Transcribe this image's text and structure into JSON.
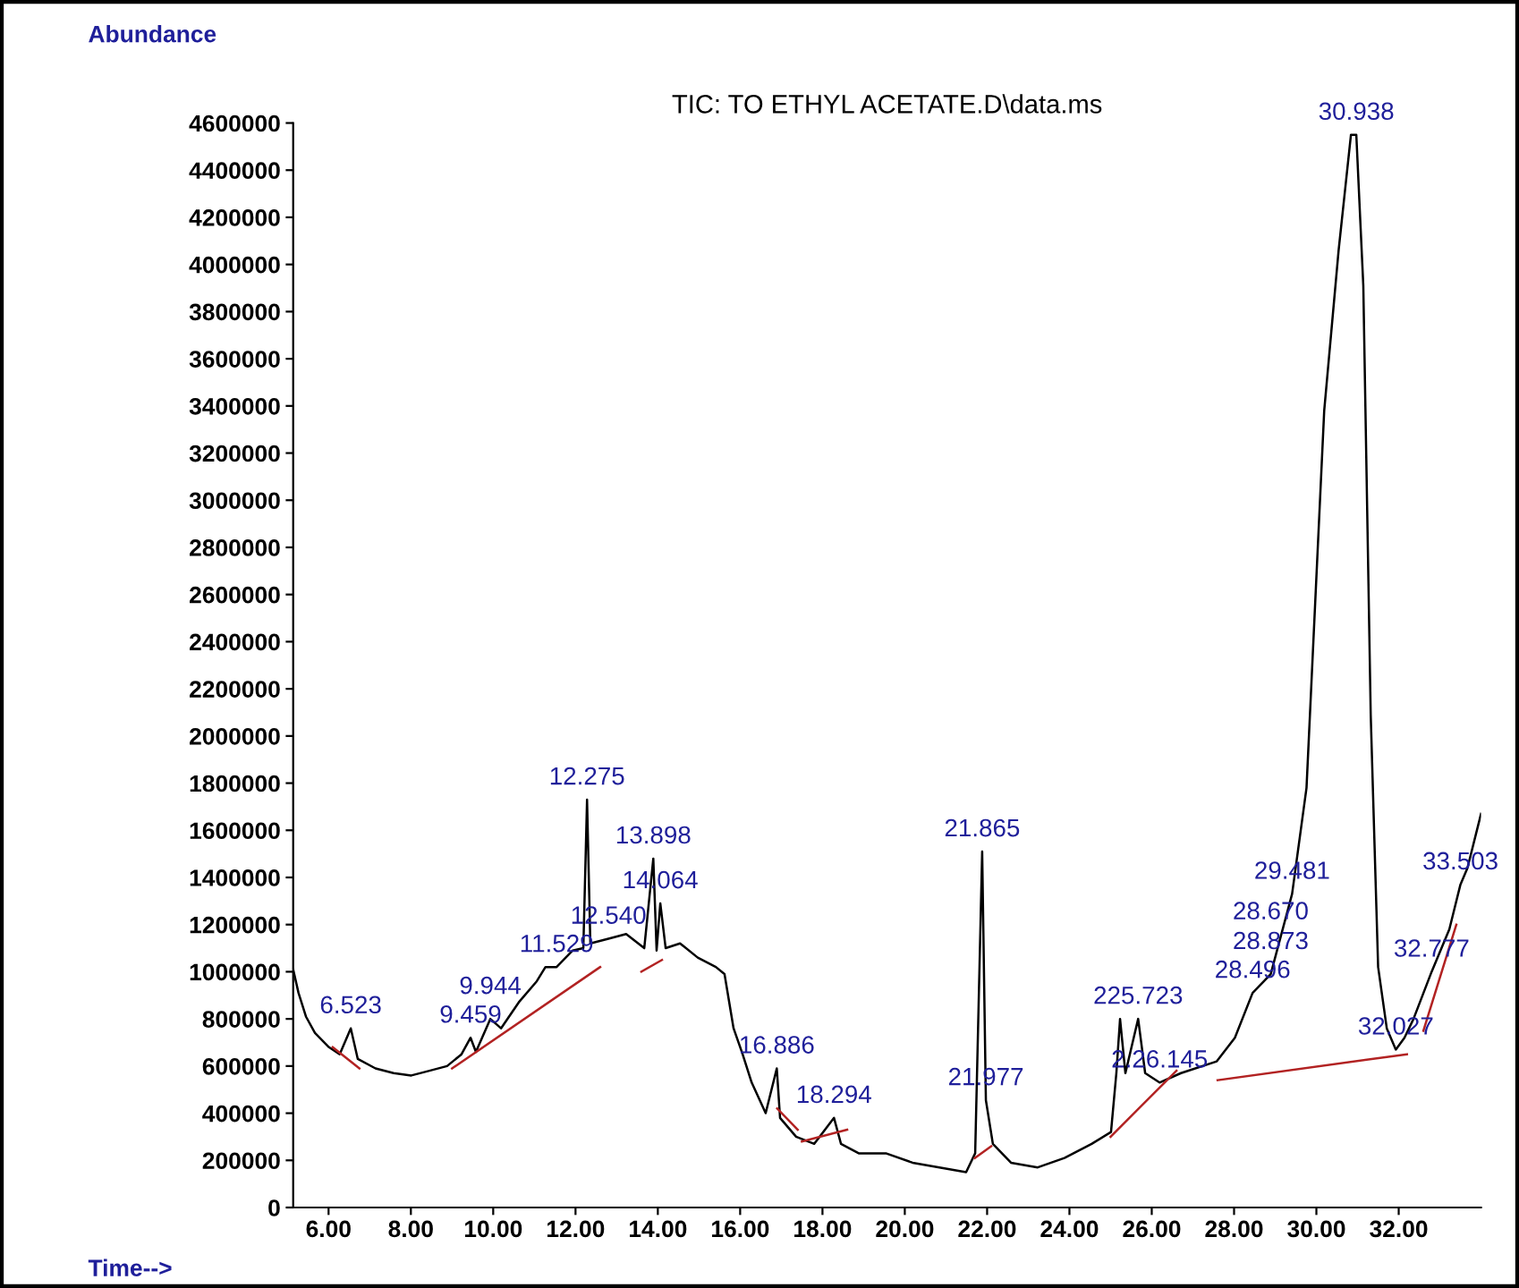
{
  "chart_data": {
    "type": "line",
    "title": "TIC: TO ETHYL ACETATE.D\\data.ms",
    "xlabel": "Time-->",
    "ylabel": "Abundance",
    "xlim": [
      5.14,
      34.0
    ],
    "ylim": [
      0,
      4600000
    ],
    "xticks": [
      {
        "value": 6,
        "label": "6.00"
      },
      {
        "value": 8,
        "label": "8.00"
      },
      {
        "value": 10,
        "label": "10.00"
      },
      {
        "value": 12,
        "label": "12.00"
      },
      {
        "value": 14,
        "label": "14.00"
      },
      {
        "value": 16,
        "label": "16.00"
      },
      {
        "value": 18,
        "label": "18.00"
      },
      {
        "value": 20,
        "label": "20.00"
      },
      {
        "value": 22,
        "label": "22.00"
      },
      {
        "value": 24,
        "label": "24.00"
      },
      {
        "value": 26,
        "label": "26.00"
      },
      {
        "value": 28,
        "label": "28.00"
      },
      {
        "value": 30,
        "label": "30.00"
      },
      {
        "value": 32,
        "label": "32.00"
      }
    ],
    "yticks": [
      0,
      200000,
      400000,
      600000,
      800000,
      1000000,
      1200000,
      1400000,
      1600000,
      1800000,
      2000000,
      2200000,
      2400000,
      2600000,
      2800000,
      3000000,
      3200000,
      3400000,
      3600000,
      3800000,
      4000000,
      4200000,
      4400000,
      4600000
    ],
    "grid": false,
    "marker": "none",
    "series": [
      {
        "color": "#000000",
        "line_style": "solid",
        "x": [
          5.14,
          5.27,
          5.45,
          5.67,
          6.01,
          6.27,
          6.54,
          6.71,
          7.14,
          7.58,
          8.01,
          8.45,
          8.88,
          9.23,
          9.45,
          9.58,
          9.93,
          10.19,
          10.62,
          11.06,
          11.27,
          11.54,
          11.93,
          12.19,
          12.28,
          12.36,
          12.8,
          13.23,
          13.67,
          13.89,
          13.97,
          14.06,
          14.19,
          14.54,
          14.97,
          15.41,
          15.62,
          15.84,
          16.06,
          16.28,
          16.62,
          16.89,
          16.97,
          17.36,
          17.8,
          18.28,
          18.45,
          18.88,
          19.54,
          20.19,
          20.84,
          21.49,
          21.71,
          21.88,
          21.97,
          22.14,
          22.58,
          23.23,
          23.88,
          24.54,
          25.01,
          25.14,
          25.23,
          25.36,
          25.67,
          25.84,
          26.19,
          26.71,
          27.58,
          28.02,
          28.45,
          28.89,
          29.41,
          29.76,
          30.19,
          30.54,
          30.84,
          30.97,
          31.14,
          31.32,
          31.5,
          31.71,
          31.93,
          32.14,
          32.36,
          32.8,
          33.23,
          33.5,
          33.67,
          34.0
        ],
        "values": [
          1010000,
          910000,
          810000,
          740000,
          680000,
          650000,
          760000,
          630000,
          590000,
          570000,
          560000,
          580000,
          600000,
          650000,
          720000,
          660000,
          800000,
          760000,
          870000,
          960000,
          1020000,
          1020000,
          1090000,
          1100000,
          1730000,
          1120000,
          1140000,
          1160000,
          1100000,
          1480000,
          1090000,
          1290000,
          1100000,
          1120000,
          1060000,
          1020000,
          990000,
          760000,
          650000,
          530000,
          400000,
          590000,
          380000,
          300000,
          270000,
          380000,
          270000,
          230000,
          230000,
          190000,
          170000,
          150000,
          230000,
          1510000,
          455000,
          270000,
          190000,
          170000,
          210000,
          270000,
          320000,
          570000,
          800000,
          570000,
          800000,
          570000,
          530000,
          570000,
          620000,
          720000,
          910000,
          990000,
          1330000,
          1780000,
          3380000,
          4060000,
          4550000,
          4550000,
          3910000,
          2090000,
          1020000,
          760000,
          670000,
          720000,
          800000,
          1000000,
          1180000,
          1370000,
          1440000,
          1670000
        ]
      },
      {
        "color": "#b22222",
        "line_style": "solid",
        "x": [
          6.1,
          6.75,
          null,
          9.0,
          12.6,
          null,
          13.6,
          14.1,
          null,
          16.9,
          17.4,
          null,
          17.5,
          18.6,
          null,
          21.7,
          22.1,
          null,
          25.0,
          26.6,
          null,
          27.6,
          32.2,
          null,
          32.6,
          33.4
        ],
        "values": [
          680000,
          590000,
          null,
          590000,
          1020000,
          null,
          1000000,
          1050000,
          null,
          420000,
          330000,
          null,
          280000,
          330000,
          null,
          210000,
          260000,
          null,
          300000,
          580000,
          null,
          540000,
          650000,
          null,
          750000,
          1200000
        ]
      }
    ],
    "annotations": [
      {
        "text": "6.523",
        "x": 6.54,
        "y": 760000
      },
      {
        "text": "9.459",
        "x": 9.45,
        "y": 720000
      },
      {
        "text": "9.944",
        "x": 9.93,
        "y": 800000
      },
      {
        "text": "11.529",
        "x": 11.54,
        "y": 1020000
      },
      {
        "text": "12.540",
        "x": 12.8,
        "y": 1140000
      },
      {
        "text": "12.275",
        "x": 12.28,
        "y": 1730000
      },
      {
        "text": "13.898",
        "x": 13.89,
        "y": 1480000
      },
      {
        "text": "14.064",
        "x": 14.06,
        "y": 1290000
      },
      {
        "text": "16.886",
        "x": 16.89,
        "y": 590000
      },
      {
        "text": "18.294",
        "x": 18.28,
        "y": 380000
      },
      {
        "text": "21.865",
        "x": 21.88,
        "y": 1510000
      },
      {
        "text": "21.977",
        "x": 21.97,
        "y": 455000
      },
      {
        "text": "225.723",
        "x": 25.67,
        "y": 800000
      },
      {
        "text": "2.26.145",
        "x": 26.19,
        "y": 530000
      },
      {
        "text": "28.496",
        "x": 28.45,
        "y": 910000
      },
      {
        "text": "28.873",
        "x": 28.89,
        "y": 990000
      },
      {
        "text": "28.670",
        "x": 28.89,
        "y": 990000
      },
      {
        "text": "29.481",
        "x": 29.41,
        "y": 1330000
      },
      {
        "text": "30.938",
        "x": 30.97,
        "y": 4550000
      },
      {
        "text": "32.027",
        "x": 31.93,
        "y": 670000
      },
      {
        "text": "32.777",
        "x": 32.8,
        "y": 1000000
      },
      {
        "text": "33.503",
        "x": 33.5,
        "y": 1370000
      }
    ]
  }
}
